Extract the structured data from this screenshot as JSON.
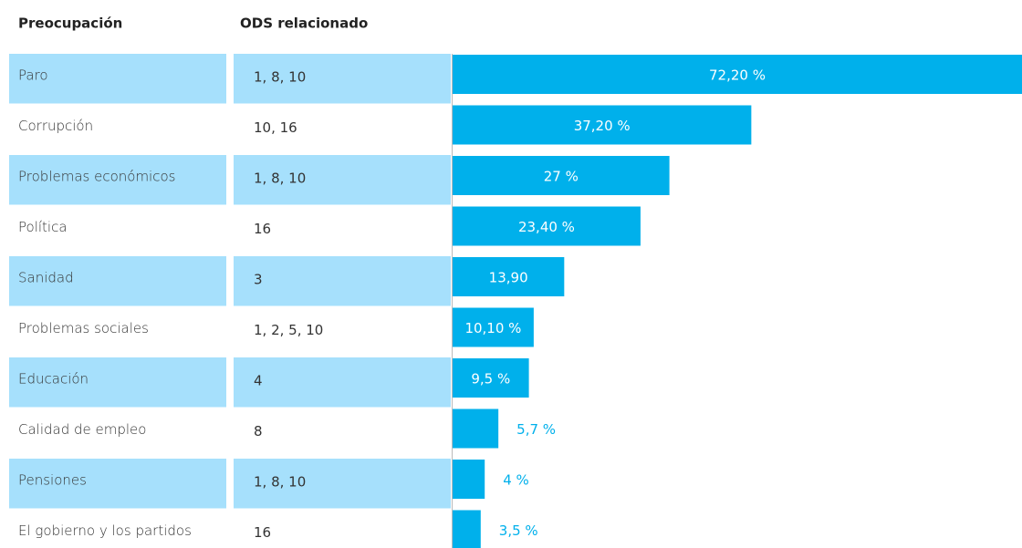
{
  "headers": [
    "Preocupación",
    "ODS relacionado"
  ],
  "ods": [
    "1, 8, 10",
    "10, 16",
    "1, 8, 10",
    "16",
    "3",
    "1, 2, 5, 10",
    "4",
    "8",
    "1, 8, 10",
    "16"
  ],
  "chart_data": {
    "type": "bar",
    "categories": [
      "Paro",
      "Corrupción",
      "Problemas económicos",
      "Política",
      "Sanidad",
      "Problemas sociales",
      "Educación",
      "Calidad de empleo",
      "Pensiones",
      "El gobierno y los partidos"
    ],
    "values": [
      72.2,
      37.2,
      27,
      23.4,
      13.9,
      10.1,
      9.5,
      5.7,
      4,
      3.5
    ],
    "value_labels": [
      "72,20 %",
      "37,20 %",
      "27 %",
      "23,40 %",
      "13,90",
      "10,10 %",
      "9,5 %",
      "5,7 %",
      "4 %",
      "3,5 %"
    ],
    "color": "#00b0eb"
  }
}
